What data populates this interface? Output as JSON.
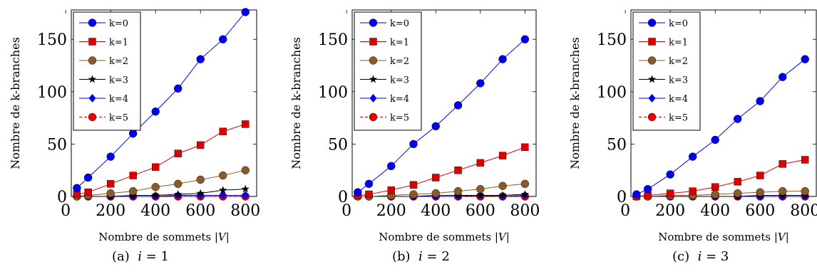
{
  "chart_data": [
    {
      "type": "line",
      "ylabel": "Nombre de k-branches",
      "xlabel_text": "Nombre de sommets",
      "xlabel_math": "|V|",
      "caption_prefix": "(a)",
      "caption_var": "i",
      "caption_value": "= 1",
      "xlim": [
        25,
        850
      ],
      "ylim": [
        0,
        178
      ],
      "xticks": [
        0,
        200,
        400,
        600,
        800
      ],
      "yticks": [
        0,
        50,
        100,
        150
      ],
      "x": [
        50,
        100,
        200,
        300,
        400,
        500,
        600,
        700,
        800
      ],
      "series": [
        {
          "name": "k=0",
          "color": "#0000ee",
          "marker": "circle",
          "dashed": false,
          "values": [
            8,
            18,
            38,
            60,
            81,
            103,
            131,
            150,
            176
          ]
        },
        {
          "name": "k=1",
          "color": "#dd0000",
          "marker": "square",
          "dashed": false,
          "values": [
            2,
            4,
            12,
            20,
            28,
            41,
            49,
            62,
            69
          ]
        },
        {
          "name": "k=2",
          "color": "#8b5a2b",
          "marker": "circle",
          "dashed": false,
          "values": [
            0,
            1,
            3,
            5,
            9,
            12,
            16,
            20,
            25
          ]
        },
        {
          "name": "k=3",
          "color": "#000000",
          "marker": "star",
          "dashed": false,
          "values": [
            0,
            0,
            0,
            1,
            1,
            2,
            3,
            6,
            7
          ]
        },
        {
          "name": "k=4",
          "color": "#0000ee",
          "marker": "diamond",
          "dashed": false,
          "values": [
            0,
            0,
            0,
            0,
            0,
            1,
            1,
            1,
            1
          ]
        },
        {
          "name": "k=5",
          "color": "#ee0000",
          "marker": "circle",
          "dashed": true,
          "values": [
            0,
            0,
            0,
            0,
            0,
            0,
            0,
            0,
            0
          ]
        }
      ]
    },
    {
      "type": "line",
      "ylabel": "Nombre de k-branches",
      "xlabel_text": "Nombre de sommets",
      "xlabel_math": "|V|",
      "caption_prefix": "(b)",
      "caption_var": "i",
      "caption_value": "= 2",
      "xlim": [
        25,
        850
      ],
      "ylim": [
        0,
        178
      ],
      "xticks": [
        0,
        200,
        400,
        600,
        800
      ],
      "yticks": [
        0,
        50,
        100,
        150
      ],
      "x": [
        50,
        100,
        200,
        300,
        400,
        500,
        600,
        700,
        800
      ],
      "series": [
        {
          "name": "k=0",
          "color": "#0000ee",
          "marker": "circle",
          "dashed": false,
          "values": [
            4,
            12,
            29,
            50,
            67,
            87,
            108,
            131,
            150
          ]
        },
        {
          "name": "k=1",
          "color": "#dd0000",
          "marker": "square",
          "dashed": false,
          "values": [
            1,
            2,
            6,
            11,
            18,
            25,
            32,
            39,
            47
          ]
        },
        {
          "name": "k=2",
          "color": "#8b5a2b",
          "marker": "circle",
          "dashed": false,
          "values": [
            0,
            0,
            1,
            2,
            3,
            5,
            7,
            10,
            12
          ]
        },
        {
          "name": "k=3",
          "color": "#000000",
          "marker": "star",
          "dashed": false,
          "values": [
            0,
            0,
            0,
            0,
            1,
            1,
            1,
            1,
            2
          ]
        },
        {
          "name": "k=4",
          "color": "#0000ee",
          "marker": "diamond",
          "dashed": false,
          "values": [
            0,
            0,
            0,
            0,
            0,
            0,
            1,
            0,
            1
          ]
        },
        {
          "name": "k=5",
          "color": "#ee0000",
          "marker": "circle",
          "dashed": true,
          "values": [
            0,
            0,
            0,
            0,
            0,
            0,
            0,
            0,
            0
          ]
        }
      ]
    },
    {
      "type": "line",
      "ylabel": "Nombre de k-branches",
      "xlabel_text": "Nombre de sommets",
      "xlabel_math": "|V|",
      "caption_prefix": "(c)",
      "caption_var": "i",
      "caption_value": "= 3",
      "xlim": [
        25,
        850
      ],
      "ylim": [
        0,
        178
      ],
      "xticks": [
        0,
        200,
        400,
        600,
        800
      ],
      "yticks": [
        0,
        50,
        100,
        150
      ],
      "x": [
        50,
        100,
        200,
        300,
        400,
        500,
        600,
        700,
        800
      ],
      "series": [
        {
          "name": "k=0",
          "color": "#0000ee",
          "marker": "circle",
          "dashed": false,
          "values": [
            2,
            7,
            21,
            38,
            54,
            74,
            91,
            114,
            131
          ]
        },
        {
          "name": "k=1",
          "color": "#dd0000",
          "marker": "square",
          "dashed": false,
          "values": [
            0,
            1,
            3,
            5,
            9,
            14,
            20,
            31,
            35
          ]
        },
        {
          "name": "k=2",
          "color": "#8b5a2b",
          "marker": "circle",
          "dashed": false,
          "values": [
            0,
            0,
            1,
            1,
            2,
            3,
            4,
            5,
            5
          ]
        },
        {
          "name": "k=3",
          "color": "#000000",
          "marker": "star",
          "dashed": false,
          "values": [
            0,
            0,
            0,
            0,
            0,
            0,
            1,
            1,
            1
          ]
        },
        {
          "name": "k=4",
          "color": "#0000ee",
          "marker": "diamond",
          "dashed": false,
          "values": [
            0,
            0,
            0,
            0,
            0,
            0,
            0,
            0,
            0
          ]
        },
        {
          "name": "k=5",
          "color": "#ee0000",
          "marker": "circle",
          "dashed": true,
          "values": [
            0,
            0,
            0,
            0,
            0,
            0,
            0,
            0,
            0
          ]
        }
      ]
    }
  ]
}
